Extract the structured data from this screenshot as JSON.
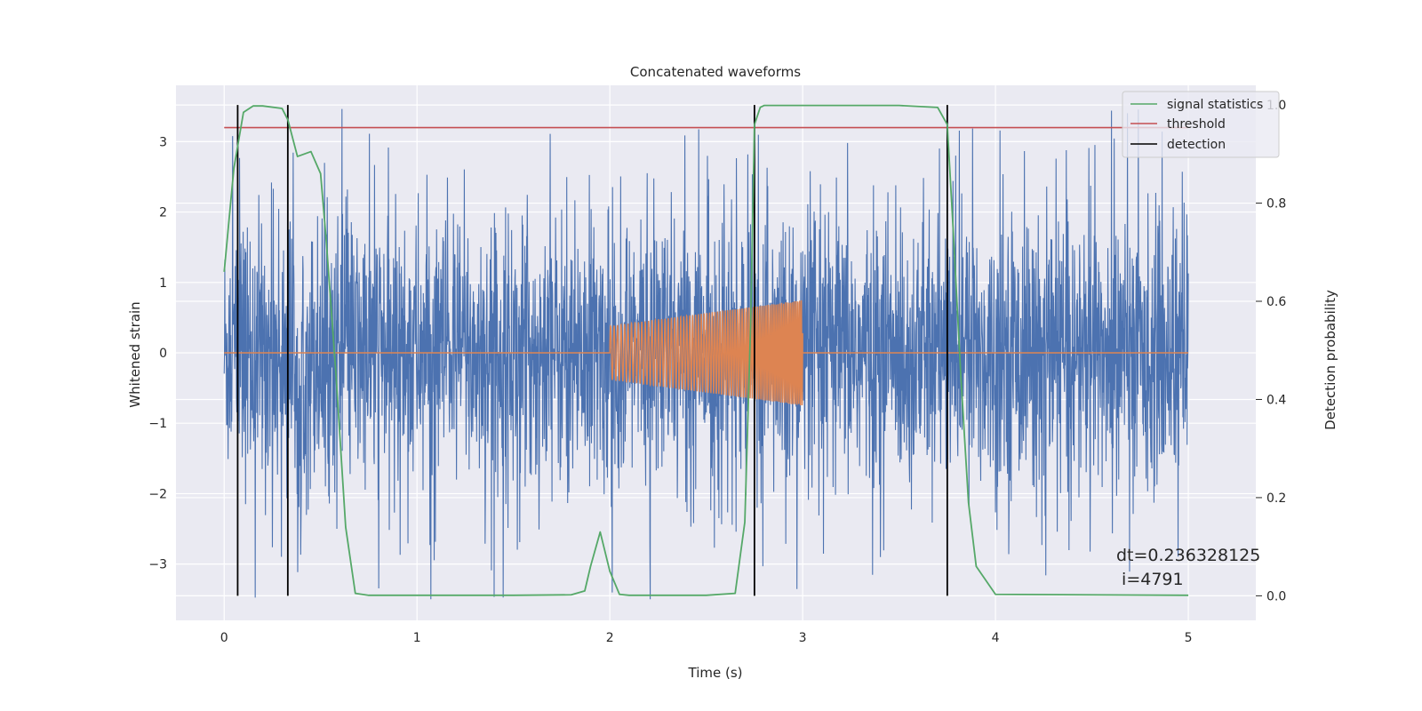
{
  "chart_data": {
    "type": "line",
    "title": "Concatenated waveforms",
    "xlabel": "Time (s)",
    "ylabel": "Whitened strain",
    "y2label": "Detection probability",
    "xlim": [
      -0.25,
      5.35
    ],
    "ylim": [
      -3.8,
      3.8
    ],
    "y2lim": [
      -0.05,
      1.04
    ],
    "xticks": [
      0,
      1,
      2,
      3,
      4,
      5
    ],
    "xtick_labels": [
      "0",
      "1",
      "2",
      "3",
      "4",
      "5"
    ],
    "yticks": [
      -3,
      -2,
      -1,
      0,
      1,
      2,
      3
    ],
    "ytick_labels": [
      "−3",
      "−2",
      "−1",
      "0",
      "1",
      "2",
      "3"
    ],
    "y2ticks": [
      0.0,
      0.2,
      0.4,
      0.6,
      0.8,
      1.0
    ],
    "y2tick_labels": [
      "0.0",
      "0.2",
      "0.4",
      "0.6",
      "0.8",
      "1.0"
    ],
    "grid": true,
    "legend_position": "top-right",
    "colors": {
      "noise": "#4c72b0",
      "injection": "#dd8452",
      "signal_statistics": "#55a868",
      "threshold": "#c44e52",
      "detection": "#000000",
      "plot_background": "#eaeaf2",
      "grid": "#ffffff"
    },
    "series": [
      {
        "name": "",
        "role": "whitened strain noise",
        "axis": "left",
        "x_range": [
          0,
          5
        ],
        "envelope": "random noise, mostly within ±2.5, occasional spikes to about ±3.5"
      },
      {
        "name": "",
        "role": "injected chirp waveform",
        "axis": "left",
        "x_range": [
          2.0,
          3.0
        ],
        "amplitude_start": 0.38,
        "amplitude_end": 0.75
      },
      {
        "name": "signal statistics",
        "axis": "right",
        "x": [
          0.0,
          0.05,
          0.1,
          0.15,
          0.2,
          0.3,
          0.33,
          0.38,
          0.45,
          0.5,
          0.53,
          0.58,
          0.63,
          0.68,
          0.75,
          1.0,
          1.5,
          1.8,
          1.87,
          1.9,
          1.95,
          2.0,
          2.05,
          2.1,
          2.5,
          2.65,
          2.7,
          2.73,
          2.75,
          2.78,
          2.8,
          3.0,
          3.5,
          3.7,
          3.75,
          3.78,
          3.82,
          3.86,
          3.9,
          4.0,
          5.0
        ],
        "y": [
          0.66,
          0.87,
          0.985,
          0.998,
          0.998,
          0.993,
          0.97,
          0.895,
          0.905,
          0.86,
          0.72,
          0.45,
          0.14,
          0.005,
          0.001,
          0.001,
          0.001,
          0.002,
          0.01,
          0.06,
          0.13,
          0.05,
          0.003,
          0.001,
          0.001,
          0.005,
          0.15,
          0.55,
          0.96,
          0.995,
          0.999,
          0.999,
          0.999,
          0.995,
          0.96,
          0.75,
          0.45,
          0.19,
          0.06,
          0.003,
          0.001
        ]
      },
      {
        "name": "threshold",
        "axis": "left",
        "x": [
          0,
          5
        ],
        "y": [
          3.2,
          3.2
        ]
      },
      {
        "name": "detection",
        "axis": "right",
        "type": "vlines",
        "x": [
          0.07,
          0.33,
          2.75,
          3.75
        ],
        "y_range": [
          0,
          1
        ]
      }
    ],
    "annotations": [
      "dt=0.236328125",
      " i=4791"
    ]
  }
}
